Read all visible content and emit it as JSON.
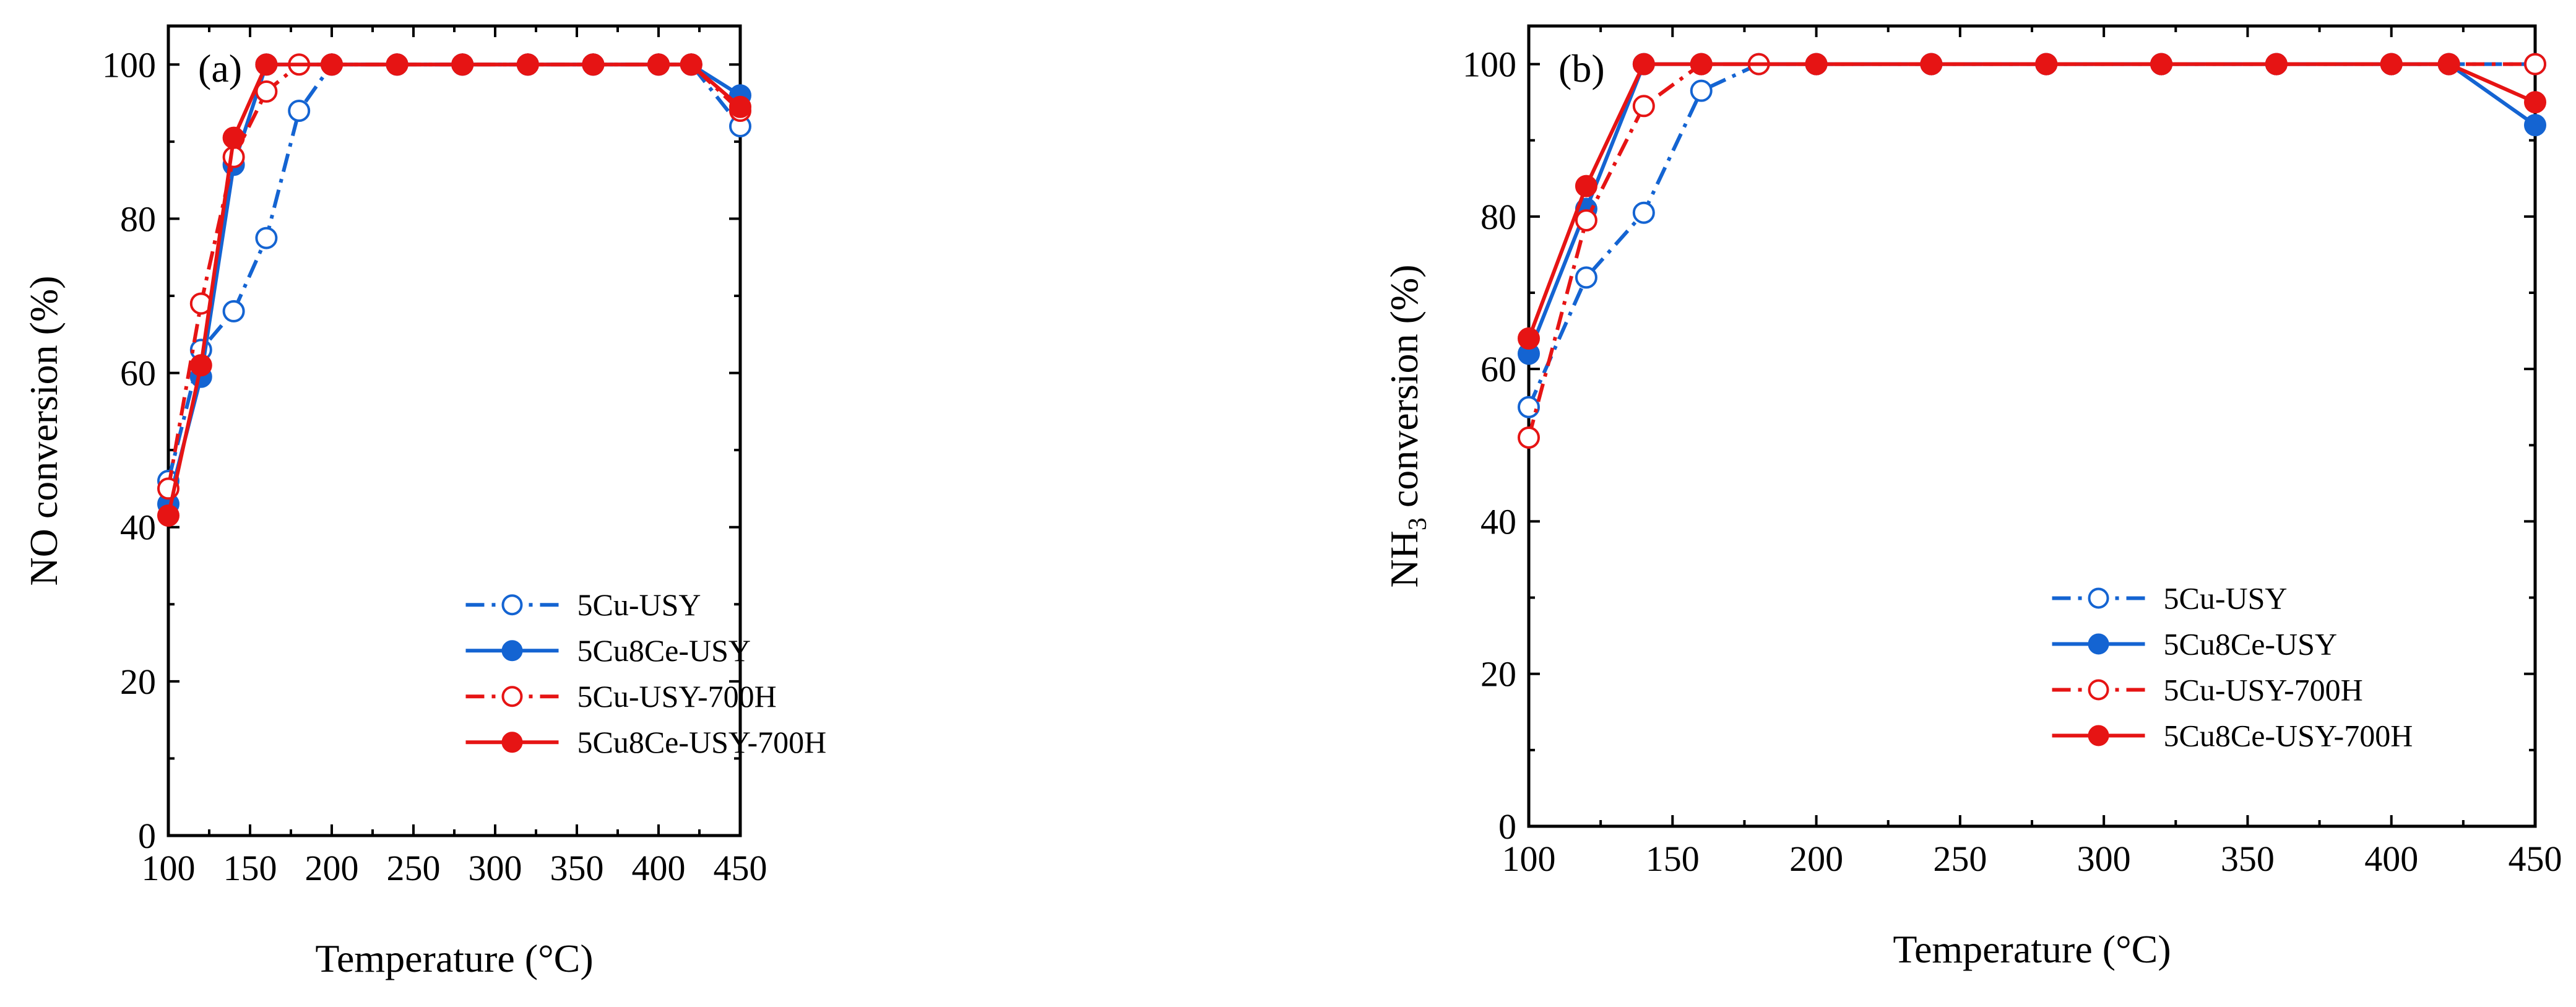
{
  "chart_data": [
    {
      "type": "line",
      "panel_label": "(a)",
      "xlabel": "Temperature (°C)",
      "ylabel": "NO conversion (%)",
      "xlim": [
        100,
        450
      ],
      "ylim": [
        0,
        105
      ],
      "xticks": [
        100,
        150,
        200,
        250,
        300,
        350,
        400,
        450
      ],
      "yticks": [
        0,
        20,
        40,
        60,
        80,
        100
      ],
      "legend_position": "bottom-right",
      "series": [
        {
          "name": "5Cu-USY",
          "color": "#1464d2",
          "dash": "dashdot",
          "marker": "open",
          "x": [
            100,
            120,
            140,
            160,
            180,
            200,
            240,
            280,
            320,
            360,
            400,
            420,
            450
          ],
          "y": [
            46,
            63,
            68,
            77.5,
            94,
            100,
            100,
            100,
            100,
            100,
            100,
            100,
            92
          ]
        },
        {
          "name": "5Cu8Ce-USY",
          "color": "#1464d2",
          "dash": "solid",
          "marker": "filled",
          "x": [
            100,
            120,
            140,
            160,
            200,
            240,
            280,
            320,
            360,
            400,
            420,
            450
          ],
          "y": [
            43,
            59.5,
            87,
            100,
            100,
            100,
            100,
            100,
            100,
            100,
            100,
            96
          ]
        },
        {
          "name": "5Cu-USY-700H",
          "color": "#e61414",
          "dash": "dashdot",
          "marker": "open",
          "x": [
            100,
            120,
            140,
            160,
            180,
            200,
            240,
            280,
            320,
            360,
            400,
            420,
            450
          ],
          "y": [
            45,
            69,
            88,
            96.5,
            100,
            100,
            100,
            100,
            100,
            100,
            100,
            100,
            94
          ]
        },
        {
          "name": "5Cu8Ce-USY-700H",
          "color": "#e61414",
          "dash": "solid",
          "marker": "filled",
          "x": [
            100,
            120,
            140,
            160,
            200,
            240,
            280,
            320,
            360,
            400,
            420,
            450
          ],
          "y": [
            41.5,
            61,
            90.5,
            100,
            100,
            100,
            100,
            100,
            100,
            100,
            100,
            94.5
          ]
        }
      ]
    },
    {
      "type": "line",
      "panel_label": "(b)",
      "xlabel": "Temperature (°C)",
      "ylabel_main": "NH",
      "ylabel_sub": "3",
      "ylabel_rest": " conversion (%)",
      "xlim": [
        100,
        450
      ],
      "ylim": [
        0,
        105
      ],
      "xticks": [
        100,
        150,
        200,
        250,
        300,
        350,
        400,
        450
      ],
      "yticks": [
        0,
        20,
        40,
        60,
        80,
        100
      ],
      "legend_position": "bottom-right",
      "series": [
        {
          "name": "5Cu-USY",
          "color": "#1464d2",
          "dash": "dashdot",
          "marker": "open",
          "x": [
            100,
            120,
            140,
            160,
            180,
            200,
            240,
            280,
            320,
            360,
            400,
            420,
            450
          ],
          "y": [
            55,
            72,
            80.5,
            96.5,
            100,
            100,
            100,
            100,
            100,
            100,
            100,
            100,
            100
          ]
        },
        {
          "name": "5Cu8Ce-USY",
          "color": "#1464d2",
          "dash": "solid",
          "marker": "filled",
          "x": [
            100,
            120,
            140,
            160,
            200,
            240,
            280,
            320,
            360,
            400,
            420,
            450
          ],
          "y": [
            62,
            81,
            100,
            100,
            100,
            100,
            100,
            100,
            100,
            100,
            100,
            92
          ]
        },
        {
          "name": "5Cu-USY-700H",
          "color": "#e61414",
          "dash": "dashdot",
          "marker": "open",
          "x": [
            100,
            120,
            140,
            160,
            180,
            200,
            240,
            280,
            320,
            360,
            400,
            420,
            450
          ],
          "y": [
            51,
            79.5,
            94.5,
            100,
            100,
            100,
            100,
            100,
            100,
            100,
            100,
            100,
            100
          ]
        },
        {
          "name": "5Cu8Ce-USY-700H",
          "color": "#e61414",
          "dash": "solid",
          "marker": "filled",
          "x": [
            100,
            120,
            140,
            160,
            200,
            240,
            280,
            320,
            360,
            400,
            420,
            450
          ],
          "y": [
            64,
            84,
            100,
            100,
            100,
            100,
            100,
            100,
            100,
            100,
            100,
            95
          ]
        }
      ]
    }
  ]
}
